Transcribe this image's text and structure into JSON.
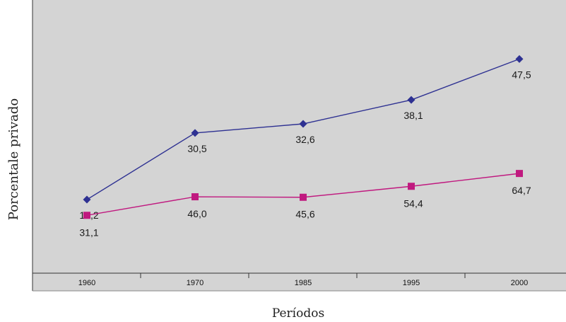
{
  "chart_data": {
    "type": "line",
    "title": "",
    "xlabel": "Períodos",
    "ylabel": "Porcentale  privado",
    "categories": [
      "1960",
      "1970",
      "1985",
      "1995",
      "2000"
    ],
    "series": [
      {
        "color": "#2e3192",
        "marker": "diamond",
        "values": [
          15.2,
          30.5,
          32.6,
          38.1,
          47.5
        ],
        "labels": [
          "15,2",
          "30,5",
          "32,6",
          "38,1",
          "47,5"
        ]
      },
      {
        "color": "#c0197f",
        "marker": "square",
        "values": [
          31.1,
          46.0,
          45.6,
          54.4,
          64.7
        ],
        "labels": [
          "31,1",
          "46,0",
          "45,6",
          "54,4",
          "64,7"
        ]
      }
    ],
    "grid": false,
    "legend": "none",
    "plot_background": "#d4d4d4"
  }
}
